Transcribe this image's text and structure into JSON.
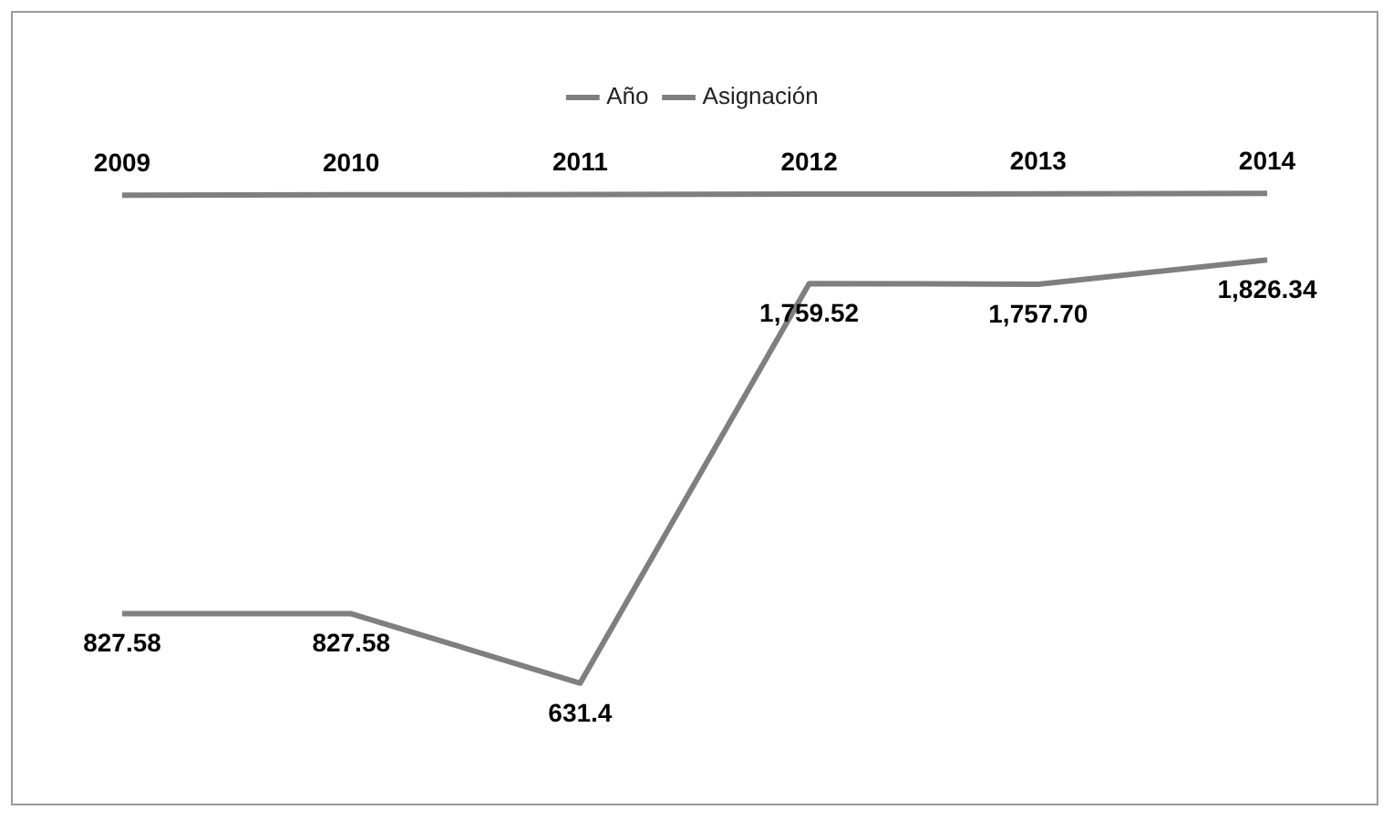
{
  "chart_data": {
    "type": "line",
    "categories": [
      null,
      null,
      null,
      null,
      null,
      null
    ],
    "series": [
      {
        "name": "Año",
        "color": "#7f7f7f",
        "values": [
          2009,
          2010,
          2011,
          2012,
          2013,
          2014
        ],
        "value_labels": [
          "2009",
          "2010",
          "2011",
          "2012",
          "2013",
          "2014"
        ]
      },
      {
        "name": "Asignación",
        "color": "#7f7f7f",
        "values": [
          827.58,
          827.58,
          631.4,
          1759.52,
          1757.7,
          1826.34
        ],
        "value_labels": [
          "827.58",
          "827.58",
          "631.4",
          "1,759.52",
          "1,757.70",
          "1,826.34"
        ]
      }
    ],
    "legend": "top",
    "marker": "none",
    "line_style": "solid"
  }
}
